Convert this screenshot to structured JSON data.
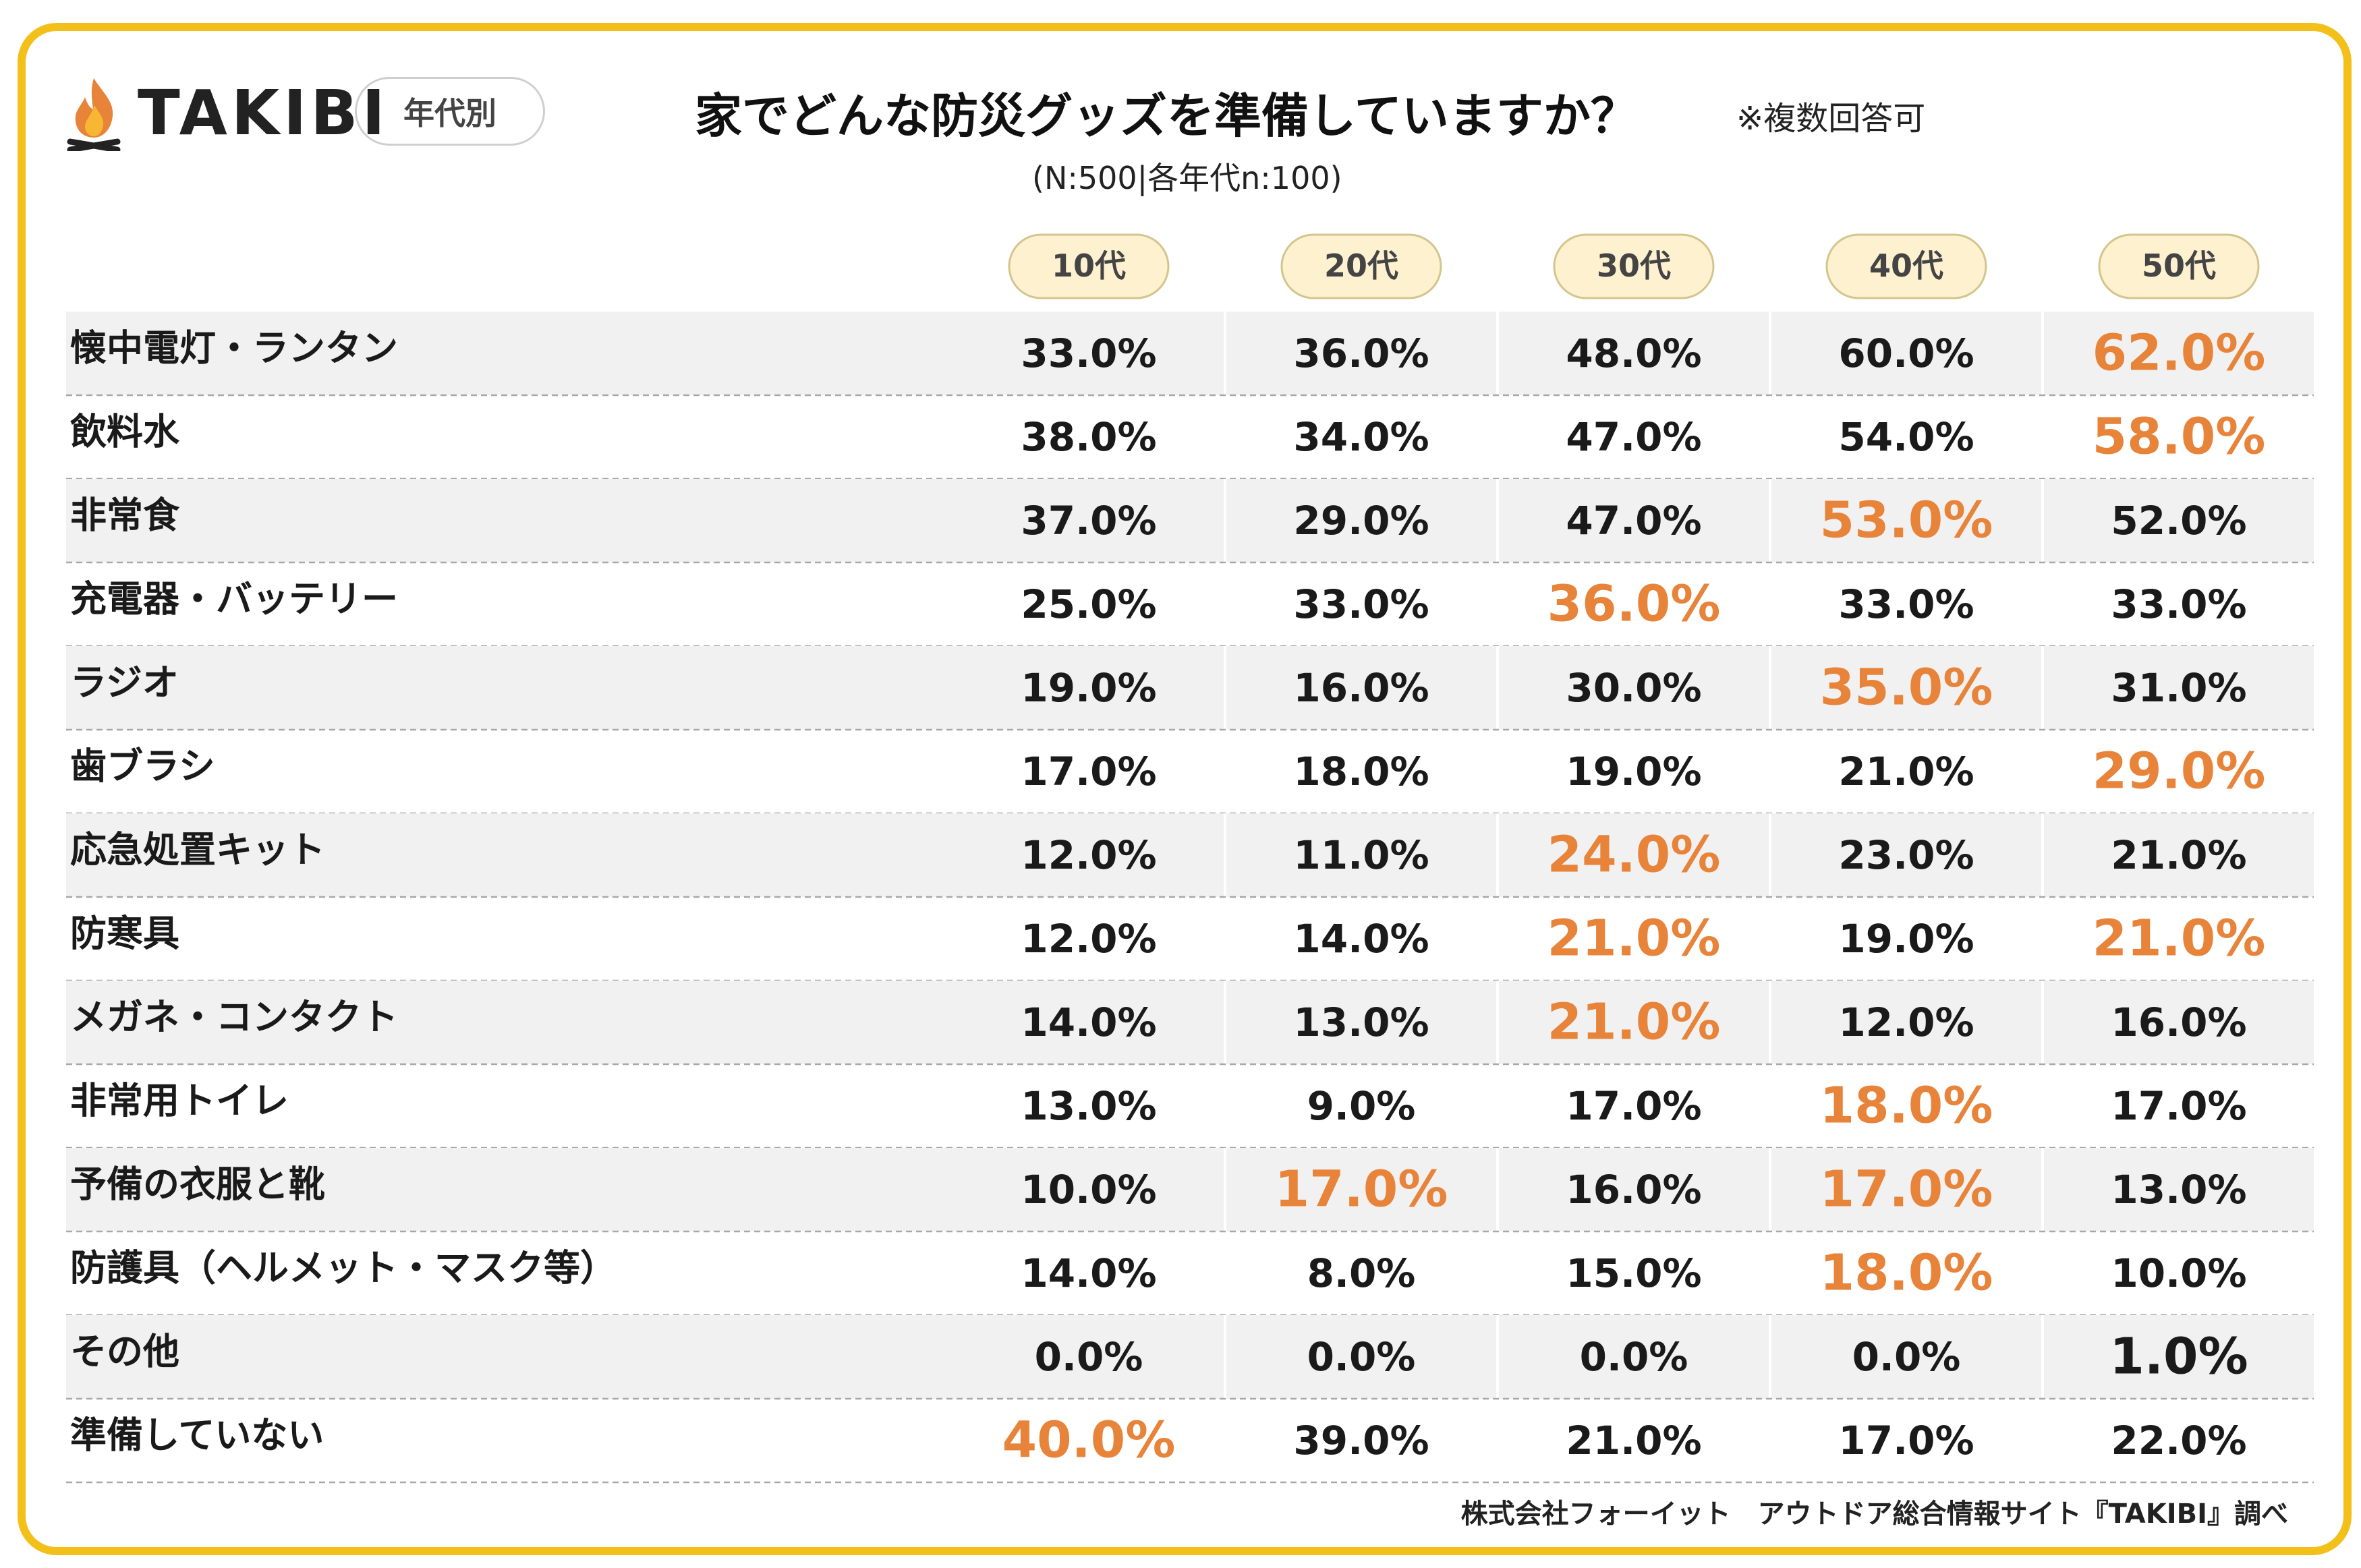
{
  "header": {
    "logo_text": "TAKIBI",
    "logo_icon": "campfire-icon",
    "segment_badge": "年代別",
    "title": "家でどんな防災グッズを準備していますか？",
    "multi_answer_note": "※複数回答可",
    "sample_note": "(N:500|各年代n:100)"
  },
  "colors": {
    "frame": "#f3c01a",
    "highlight": "#e8833a",
    "header_pill_bg": "#fdf1cf",
    "header_pill_border": "#d4c58d",
    "row_shade": "#f1f1f1",
    "text": "#1a1a1a"
  },
  "chart_data": {
    "type": "table",
    "columns": [
      "10代",
      "20代",
      "30代",
      "40代",
      "50代"
    ],
    "rows": [
      {
        "label": "懐中電灯・ランタン",
        "values": [
          "33.0%",
          "36.0%",
          "48.0%",
          "60.0%",
          "62.0%"
        ],
        "highlight": [
          4
        ]
      },
      {
        "label": "飲料水",
        "values": [
          "38.0%",
          "34.0%",
          "47.0%",
          "54.0%",
          "58.0%"
        ],
        "highlight": [
          4
        ]
      },
      {
        "label": "非常食",
        "values": [
          "37.0%",
          "29.0%",
          "47.0%",
          "53.0%",
          "52.0%"
        ],
        "highlight": [
          3
        ]
      },
      {
        "label": "充電器・バッテリー",
        "values": [
          "25.0%",
          "33.0%",
          "36.0%",
          "33.0%",
          "33.0%"
        ],
        "highlight": [
          2
        ]
      },
      {
        "label": "ラジオ",
        "values": [
          "19.0%",
          "16.0%",
          "30.0%",
          "35.0%",
          "31.0%"
        ],
        "highlight": [
          3
        ]
      },
      {
        "label": "歯ブラシ",
        "values": [
          "17.0%",
          "18.0%",
          "19.0%",
          "21.0%",
          "29.0%"
        ],
        "highlight": [
          4
        ]
      },
      {
        "label": "応急処置キット",
        "values": [
          "12.0%",
          "11.0%",
          "24.0%",
          "23.0%",
          "21.0%"
        ],
        "highlight": [
          2
        ]
      },
      {
        "label": "防寒具",
        "values": [
          "12.0%",
          "14.0%",
          "21.0%",
          "19.0%",
          "21.0%"
        ],
        "highlight": [
          2,
          4
        ]
      },
      {
        "label": "メガネ・コンタクト",
        "values": [
          "14.0%",
          "13.0%",
          "21.0%",
          "12.0%",
          "16.0%"
        ],
        "highlight": [
          2
        ]
      },
      {
        "label": "非常用トイレ",
        "values": [
          "13.0%",
          "9.0%",
          "17.0%",
          "18.0%",
          "17.0%"
        ],
        "highlight": [
          3
        ]
      },
      {
        "label": "予備の衣服と靴",
        "values": [
          "10.0%",
          "17.0%",
          "16.0%",
          "17.0%",
          "13.0%"
        ],
        "highlight": [
          1,
          3
        ]
      },
      {
        "label": "防護具（ヘルメット・マスク等）",
        "values": [
          "14.0%",
          "8.0%",
          "15.0%",
          "18.0%",
          "10.0%"
        ],
        "highlight": [
          3
        ]
      },
      {
        "label": "その他",
        "values": [
          "0.0%",
          "0.0%",
          "0.0%",
          "0.0%",
          "1.0%"
        ],
        "emphasis": [
          4
        ]
      },
      {
        "label": "準備していない",
        "values": [
          "40.0%",
          "39.0%",
          "21.0%",
          "17.0%",
          "22.0%"
        ],
        "highlight": [
          0
        ]
      }
    ]
  },
  "footer": {
    "source": "株式会社フォーイット　アウトドア総合情報サイト『TAKIBI』調べ"
  }
}
